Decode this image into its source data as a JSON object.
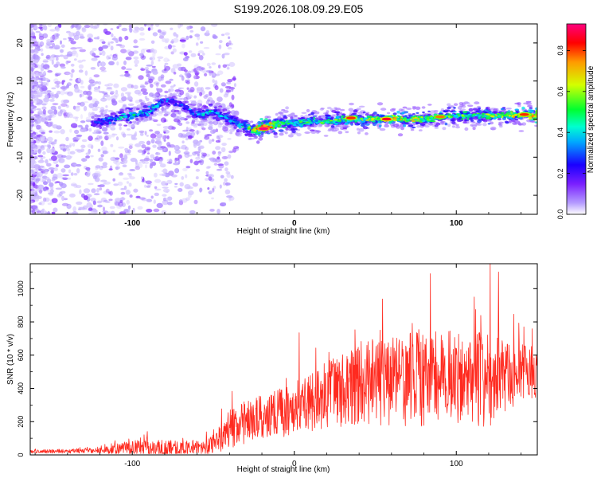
{
  "figure_title": "S199.2026.108.09.29.E05",
  "chart_data": [
    {
      "type": "heatmap",
      "name": "spectrogram",
      "title": "S199.2026.108.09.29.E05",
      "xlabel": "Height of straight line (km)",
      "ylabel": "Frequency (Hz)",
      "xlim": [
        -163,
        150
      ],
      "ylim": [
        -25,
        25
      ],
      "x_ticks": [
        -100,
        0,
        100
      ],
      "x_tick_labels": [
        "-100",
        "0",
        "100"
      ],
      "y_ticks": [
        -20,
        -10,
        0,
        10,
        20
      ],
      "y_tick_labels": [
        "-20",
        "-10",
        "0",
        "10",
        "20"
      ],
      "grid": false,
      "ridge": {
        "description": "main frequency track",
        "x": [
          -125,
          -110,
          -100,
          -90,
          -80,
          -70,
          -60,
          -50,
          -40,
          -30,
          -25,
          -20,
          -15,
          -10,
          0,
          20,
          40,
          60,
          80,
          100,
          120,
          150
        ],
        "y": [
          -1,
          0,
          1,
          2,
          5,
          4,
          1,
          2,
          0,
          -2,
          -3,
          -2,
          -2,
          -1,
          -1,
          -0.5,
          0,
          0,
          0,
          1,
          1,
          1
        ],
        "peak_amplitude": [
          0.3,
          0.45,
          0.5,
          0.45,
          0.4,
          0.35,
          0.4,
          0.45,
          0.4,
          0.5,
          0.75,
          0.9,
          0.8,
          0.6,
          0.5,
          0.55,
          0.6,
          0.7,
          0.6,
          0.55,
          0.6,
          0.75
        ]
      },
      "hot_spots": [
        {
          "x": -19,
          "y": -2.5,
          "amplitude": 0.95
        },
        {
          "x": 57,
          "y": 0,
          "amplitude": 0.85
        },
        {
          "x": 35,
          "y": 0.3,
          "amplitude": 0.8
        },
        {
          "x": 142,
          "y": 1.2,
          "amplitude": 0.8
        },
        {
          "x": 90,
          "y": 0.6,
          "amplitude": 0.75
        }
      ],
      "colorbar": {
        "label": "Normalized spectral amplitude",
        "range": [
          0.0,
          0.93
        ],
        "ticks": [
          0.0,
          0.2,
          0.4,
          0.6,
          0.8
        ],
        "tick_labels": [
          "0.0",
          "0.2",
          "0.4",
          "0.6",
          "0.8"
        ],
        "colors": [
          "#ffffff",
          "#b49bff",
          "#7a1fff",
          "#1a00ff",
          "#00e0ff",
          "#00ff30",
          "#d4ff00",
          "#ff9a00",
          "#ff0000",
          "#ff007f"
        ]
      }
    },
    {
      "type": "line",
      "name": "snr",
      "xlabel": "Height of straight line (km)",
      "ylabel": "SNR (10 * v/v)",
      "xlim": [
        -163,
        150
      ],
      "ylim": [
        0,
        1150
      ],
      "x_ticks": [
        -100,
        0,
        100
      ],
      "x_tick_labels": [
        "-100",
        "0",
        "100"
      ],
      "y_ticks": [
        0,
        200,
        400,
        600,
        800,
        1000
      ],
      "y_tick_labels": [
        "0",
        "200",
        "400",
        "600",
        "800",
        "1000"
      ],
      "grid": false,
      "color": "#ff2a1f",
      "envelope": {
        "x": [
          -163,
          -130,
          -110,
          -100,
          -80,
          -60,
          -50,
          -45,
          -40,
          -30,
          -20,
          -10,
          0,
          10,
          20,
          30,
          40,
          50,
          60,
          70,
          80,
          90,
          100,
          110,
          120,
          130,
          140,
          150
        ],
        "baseline": [
          20,
          25,
          35,
          40,
          40,
          45,
          60,
          100,
          150,
          200,
          230,
          250,
          280,
          320,
          360,
          400,
          420,
          440,
          450,
          460,
          460,
          470,
          470,
          460,
          460,
          470,
          480,
          500
        ],
        "noise_amplitude": [
          10,
          15,
          30,
          50,
          50,
          40,
          60,
          90,
          120,
          130,
          140,
          150,
          170,
          180,
          200,
          230,
          240,
          260,
          280,
          300,
          300,
          300,
          280,
          280,
          300,
          220,
          200,
          150
        ]
      },
      "peaks": [
        {
          "x": 3,
          "y": 735
        },
        {
          "x": 84,
          "y": 1090
        },
        {
          "x": 111,
          "y": 950
        },
        {
          "x": 121,
          "y": 1150
        },
        {
          "x": 126,
          "y": 1100
        }
      ]
    }
  ]
}
